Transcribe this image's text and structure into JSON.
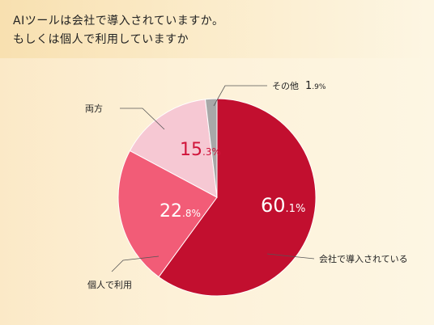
{
  "title": {
    "line1": "AIツールは会社で導入されていますか。",
    "line2": "もしくは個人で利用していますか"
  },
  "chart_data": {
    "type": "pie",
    "slices": [
      {
        "label": "会社で導入されている",
        "value": 60.1,
        "pct_main": "60",
        "pct_dec": ".1%",
        "color": "#c20f2f",
        "pct_color": "#ffffff"
      },
      {
        "label": "個人で利用",
        "value": 22.8,
        "pct_main": "22",
        "pct_dec": ".8%",
        "color": "#f25c77",
        "pct_color": "#ffffff"
      },
      {
        "label": "両方",
        "value": 15.3,
        "pct_main": "15",
        "pct_dec": ".3%",
        "color": "#f6c8d3",
        "pct_color": "#d0143a"
      },
      {
        "label": "その他",
        "value": 1.9,
        "pct_main": "1",
        "pct_dec": ".9%",
        "color": "#a8a8a8",
        "pct_color": "#222222"
      }
    ],
    "start": "12 o'clock",
    "direction": "clockwise"
  }
}
